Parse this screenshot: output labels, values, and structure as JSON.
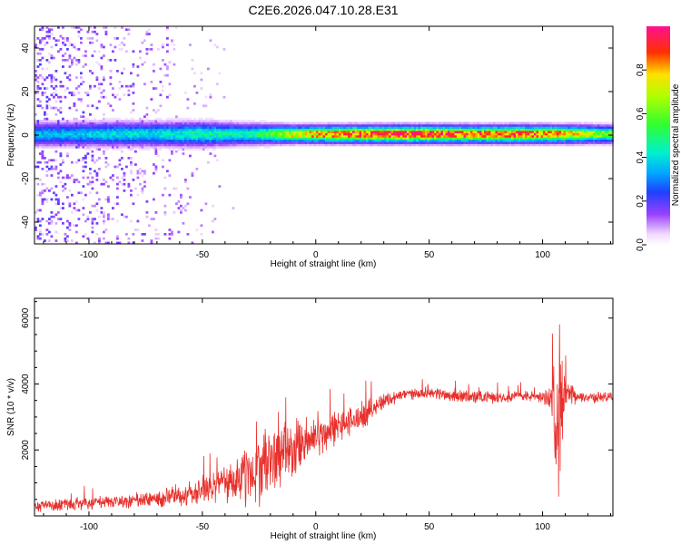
{
  "title": "C2E6.2026.047.10.28.E31",
  "chart_data": [
    {
      "type": "heatmap",
      "xlabel": "Height of straight line (km)",
      "ylabel": "Frequency (Hz)",
      "xlim": [
        -124,
        131
      ],
      "ylim": [
        -50,
        50
      ],
      "xticks": [
        -100,
        -50,
        0,
        50,
        100
      ],
      "xtick_labels": [
        "-100",
        "-50",
        "0",
        "50",
        "100"
      ],
      "yticks": [
        -40,
        -20,
        0,
        20,
        40
      ],
      "ytick_labels": [
        "-40",
        "-20",
        "0",
        "20",
        "40"
      ],
      "colorbar": {
        "label": "Normalized spectral amplitude",
        "range": [
          0,
          1
        ],
        "ticks": [
          0.0,
          0.2,
          0.4,
          0.6,
          0.8
        ],
        "tick_labels": [
          "0.0",
          "0.2",
          "0.4",
          "0.6",
          "0.8"
        ],
        "colormap": "rainbow (white-violet-blue-cyan-green-yellow-red-magenta)"
      },
      "band": {
        "center_frequency": 0,
        "profile": [
          {
            "x": -110,
            "amp": 0.35,
            "width": 7
          },
          {
            "x": -90,
            "amp": 0.4,
            "width": 7
          },
          {
            "x": -70,
            "amp": 0.4,
            "width": 7
          },
          {
            "x": -50,
            "amp": 0.45,
            "width": 7
          },
          {
            "x": -30,
            "amp": 0.45,
            "width": 6
          },
          {
            "x": -10,
            "amp": 0.7,
            "width": 5
          },
          {
            "x": 10,
            "amp": 0.82,
            "width": 5
          },
          {
            "x": 30,
            "amp": 0.88,
            "width": 5
          },
          {
            "x": 50,
            "amp": 0.9,
            "width": 5
          },
          {
            "x": 70,
            "amp": 0.82,
            "width": 5
          },
          {
            "x": 90,
            "amp": 0.85,
            "width": 5
          },
          {
            "x": 105,
            "amp": 0.8,
            "width": 5
          },
          {
            "x": 131,
            "amp": 0.55,
            "width": 5
          }
        ],
        "scatter_extent_km": [
          -124,
          -35
        ]
      }
    },
    {
      "type": "line",
      "xlabel": "Height of straight line (km)",
      "ylabel": "SNR (10 * v/v)",
      "xlim": [
        -124,
        131
      ],
      "ylim": [
        0,
        6600
      ],
      "xticks": [
        -100,
        -50,
        0,
        50,
        100
      ],
      "xtick_labels": [
        "-100",
        "-50",
        "0",
        "50",
        "100"
      ],
      "yticks": [
        2000,
        4000,
        6000
      ],
      "ytick_labels": [
        "2000",
        "4000",
        "6000"
      ],
      "color": "#e8302c",
      "series_envelope": {
        "x": [
          -124,
          -100,
          -80,
          -60,
          -50,
          -40,
          -30,
          -20,
          -10,
          0,
          10,
          20,
          30,
          40,
          50,
          60,
          70,
          80,
          90,
          100,
          104,
          106,
          108,
          110,
          115,
          120,
          131
        ],
        "mean": [
          300,
          400,
          450,
          600,
          800,
          1000,
          1200,
          1700,
          2000,
          2400,
          2700,
          3000,
          3500,
          3700,
          3750,
          3650,
          3600,
          3600,
          3650,
          3600,
          3600,
          3200,
          3400,
          3700,
          3600,
          3600,
          3600
        ],
        "amplitude": [
          200,
          250,
          300,
          400,
          500,
          700,
          1200,
          1300,
          1100,
          800,
          600,
          500,
          300,
          200,
          200,
          250,
          250,
          200,
          200,
          200,
          500,
          3000,
          2800,
          700,
          200,
          200,
          200
        ]
      }
    }
  ]
}
